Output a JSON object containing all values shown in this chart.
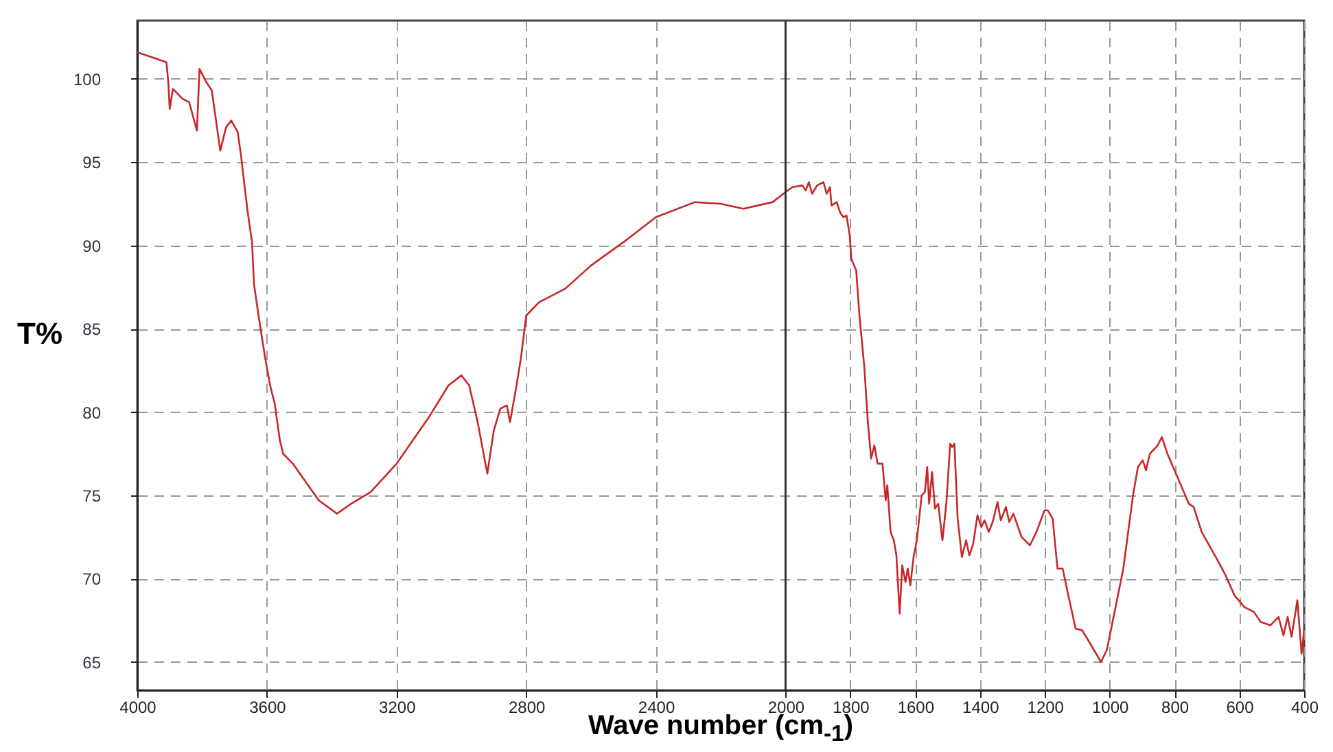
{
  "chart_data": {
    "type": "line",
    "xlabel": "Wave number (cm$_{-1}$)",
    "ylabel": "T%",
    "xlim": [
      4000,
      400
    ],
    "ylim": [
      63.3,
      103.5
    ],
    "xticks": [
      4000,
      3600,
      3200,
      2800,
      2400,
      2000,
      1800,
      1600,
      1400,
      1200,
      1000,
      800,
      600,
      400
    ],
    "yticks": [
      65,
      70,
      75,
      80,
      85,
      90,
      95,
      100
    ],
    "grid": true,
    "ref_lines": [
      {
        "axis": "x",
        "value": 2000,
        "color": "#333333"
      }
    ],
    "series": [
      {
        "color": "#c62828",
        "x": [
          4000,
          3940,
          3910,
          3904,
          3900,
          3890,
          3860,
          3840,
          3816,
          3808,
          3790,
          3770,
          3744,
          3726,
          3710,
          3690,
          3680,
          3660,
          3646,
          3640,
          3626,
          3606,
          3590,
          3576,
          3560,
          3550,
          3520,
          3480,
          3440,
          3384,
          3340,
          3280,
          3200,
          3100,
          3040,
          3000,
          2976,
          2950,
          2920,
          2900,
          2880,
          2860,
          2850,
          2830,
          2816,
          2800,
          2760,
          2680,
          2600,
          2500,
          2400,
          2280,
          2200,
          2130,
          2040,
          2000,
          1979,
          1948,
          1938,
          1928,
          1918,
          1903,
          1883,
          1873,
          1863,
          1858,
          1842,
          1832,
          1822,
          1812,
          1802,
          1797,
          1782,
          1772,
          1757,
          1746,
          1736,
          1726,
          1716,
          1701,
          1691,
          1686,
          1676,
          1666,
          1658,
          1648,
          1640,
          1630,
          1623,
          1615,
          1605,
          1595,
          1580,
          1570,
          1563,
          1557,
          1548,
          1539,
          1529,
          1516,
          1504,
          1492,
          1486,
          1479,
          1469,
          1456,
          1443,
          1433,
          1421,
          1408,
          1396,
          1386,
          1373,
          1361,
          1346,
          1336,
          1320,
          1310,
          1297,
          1272,
          1246,
          1226,
          1201,
          1191,
          1176,
          1161,
          1145,
          1130,
          1105,
          1085,
          1060,
          1027,
          1009,
          989,
          958,
          928,
          913,
          898,
          888,
          876,
          852,
          839,
          822,
          791,
          756,
          741,
          716,
          670,
          645,
          615,
          585,
          555,
          534,
          504,
          479,
          464,
          451,
          439,
          421,
          408,
          400
        ],
        "values": [
          101.6,
          101.2,
          101,
          99.7,
          98.2,
          99.4,
          98.8,
          98.6,
          96.9,
          100.6,
          99.9,
          99.3,
          95.7,
          97.1,
          97.5,
          96.8,
          95.4,
          92.1,
          90.2,
          87.7,
          85.8,
          83.3,
          81.6,
          80.5,
          78.3,
          77.5,
          76.9,
          75.8,
          74.7,
          73.9,
          74.5,
          75.2,
          76.9,
          79.7,
          81.6,
          82.2,
          81.6,
          79.4,
          76.3,
          78.9,
          80.2,
          80.4,
          79.4,
          81.6,
          83.3,
          85.8,
          86.6,
          87.4,
          88.8,
          90.2,
          91.7,
          92.6,
          92.5,
          92.2,
          92.6,
          93.2,
          93.5,
          93.6,
          93.3,
          93.8,
          93.1,
          93.6,
          93.8,
          93.1,
          93.5,
          92.4,
          92.6,
          92,
          91.7,
          91.8,
          90.6,
          89.2,
          88.5,
          85.8,
          82.7,
          79.4,
          77.2,
          78,
          76.9,
          76.9,
          74.7,
          75.6,
          72.8,
          72.3,
          71.4,
          67.9,
          70.8,
          69.8,
          70.6,
          69.6,
          71.3,
          72.3,
          75,
          75.2,
          76.7,
          74.5,
          76.4,
          74.2,
          74.5,
          72.3,
          74.5,
          78.1,
          77.9,
          78.1,
          73.6,
          71.3,
          72.3,
          71.4,
          72.1,
          73.8,
          73.1,
          73.5,
          72.8,
          73.4,
          74.6,
          73.5,
          74.3,
          73.4,
          73.9,
          72.5,
          72,
          72.8,
          74.1,
          74.1,
          73.6,
          70.6,
          70.6,
          69.2,
          67,
          66.9,
          66.1,
          65,
          65.7,
          67.6,
          70.6,
          75,
          76.7,
          77.1,
          76.5,
          77.5,
          78,
          78.5,
          77.5,
          76.1,
          74.5,
          74.3,
          72.8,
          71.2,
          70.3,
          69,
          68.3,
          68,
          67.4,
          67.2,
          67.7,
          66.6,
          67.7,
          66.5,
          68.7,
          65.5,
          66.9
        ]
      }
    ]
  }
}
